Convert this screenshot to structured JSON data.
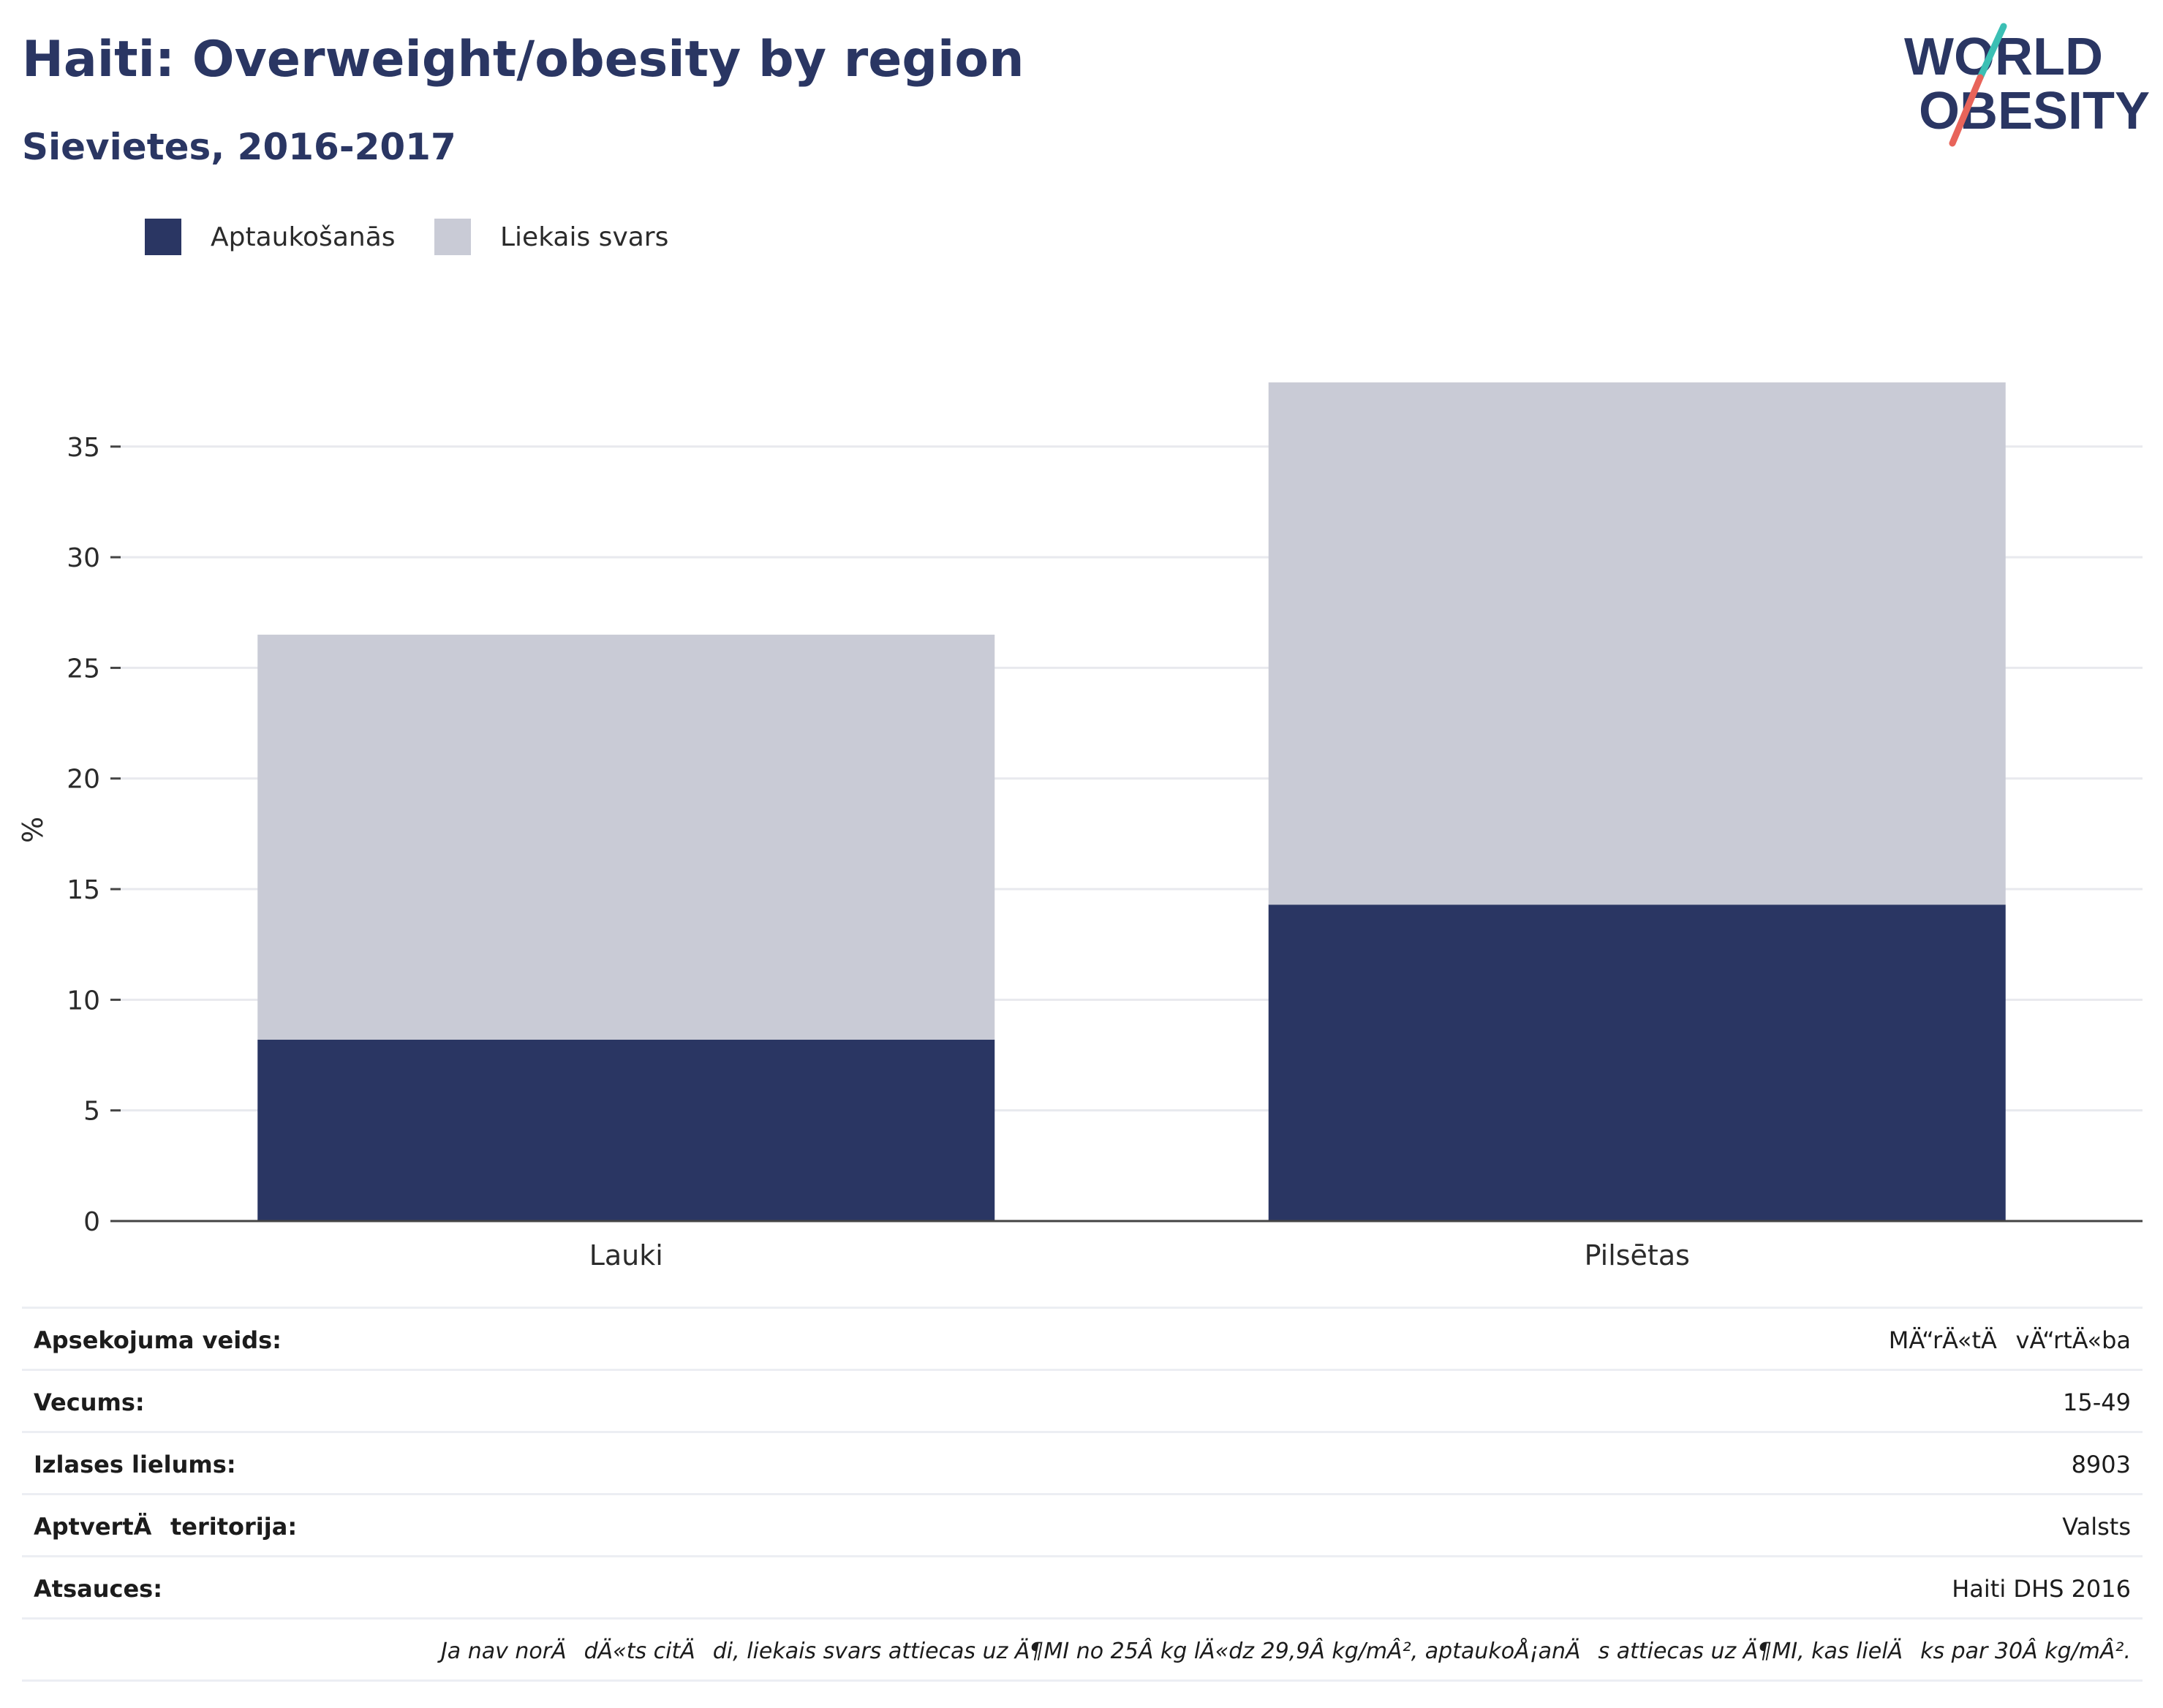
{
  "header": {
    "title": "Haiti: Overweight/obesity by region",
    "subtitle": "Sievietes, 2016-2017"
  },
  "logo": {
    "line1": "WORLD",
    "line2": "OBESITY",
    "colors": {
      "text": "#2a3663",
      "slash_top": "#3bbfb4",
      "slash_bottom": "#e8645a"
    }
  },
  "legend": [
    {
      "label": "Aptaukošanās",
      "color": "#2a3663"
    },
    {
      "label": "Liekais svars",
      "color": "#c9cbd6"
    }
  ],
  "chart_data": {
    "type": "bar",
    "stacked": true,
    "categories": [
      "Lauki",
      "Pilsētas"
    ],
    "series": [
      {
        "name": "Aptaukošanās",
        "color": "#2a3663",
        "values": [
          8.2,
          14.3
        ]
      },
      {
        "name": "Liekais svars",
        "color": "#c9cbd6",
        "values": [
          18.3,
          23.6
        ]
      }
    ],
    "ylabel": "%",
    "xlabel": "",
    "ylim": [
      0,
      38
    ],
    "yticks": [
      0,
      5,
      10,
      15,
      20,
      25,
      30,
      35
    ],
    "grid": true,
    "legend_position": "top-left"
  },
  "meta": {
    "rows": [
      {
        "label": "Apsekojuma veids:",
        "value": "MÄ“rÄ«tÄvÄ“rtÄ«ba"
      },
      {
        "label": "Vecums:",
        "value": "15-49"
      },
      {
        "label": "Izlases lielums:",
        "value": "8903"
      },
      {
        "label": "AptvertÄteritorija:",
        "value": "Valsts"
      },
      {
        "label": "Atsauces:",
        "value": "Haiti DHS 2016"
      }
    ],
    "note": "Ja nav norÄdÄ«ts citÄdi, liekais svars attiecas uz Ä¶MI no 25Â kg lÄ«dz 29,9Â kg/mÂ², aptaukoÅ¡anÄs attiecas uz Ä¶MI, kas lielÄks par 30Â kg/mÂ²."
  }
}
